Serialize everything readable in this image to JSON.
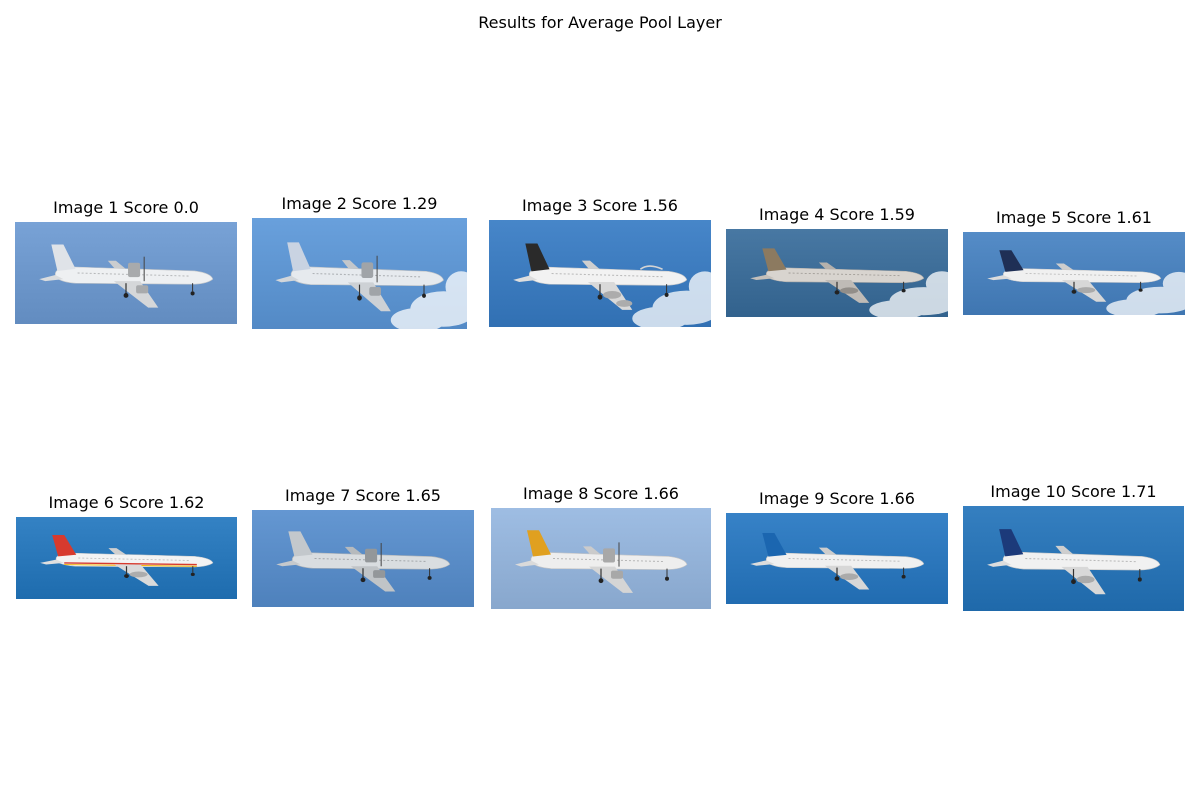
{
  "figure": {
    "title": "Results for Average Pool Layer"
  },
  "results": [
    {
      "title": "Image 1 Score 0.0",
      "subject": "white twin-turboprop airliner, clear sky",
      "sky": "#6e98cc",
      "body": "#eef0f2",
      "tail": "#dfe3e8"
    },
    {
      "title": "Image 2 Score 1.29",
      "subject": "turboprop airliner with dark engine nacelles",
      "sky": "#5f96d2",
      "body": "#e6eaee",
      "tail": "#c9d3e2"
    },
    {
      "title": "Image 3 Score 1.56",
      "subject": "four-engine wide-body jet with clouds",
      "sky": "#3d7cbf",
      "body": "#f2f2f2",
      "tail": "#2a2a2a"
    },
    {
      "title": "Image 4 Score 1.59",
      "subject": "twin-jet airliner with patterned tail",
      "sky": "#3e6e99",
      "body": "#d8d4cf",
      "tail": "#8c7a60"
    },
    {
      "title": "Image 5 Score 1.61",
      "subject": "twin-jet airliner, dark blue tail",
      "sky": "#4b82bd",
      "body": "#f0f0f0",
      "tail": "#1f2f55"
    },
    {
      "title": "Image 6 Score 1.62",
      "subject": "narrow-body jet with red and yellow stripes",
      "sky": "#2a78ba",
      "body": "#f3f3f3",
      "tail": "#d73a2e"
    },
    {
      "title": "Image 7 Score 1.65",
      "subject": "high-wing turboprop, grey livery",
      "sky": "#5a8dc8",
      "body": "#d9dde0",
      "tail": "#c3c8cc"
    },
    {
      "title": "Image 8 Score 1.66",
      "subject": "turboprop with orange tail, light sky",
      "sky": "#94b3d9",
      "body": "#eeeeee",
      "tail": "#e0a020"
    },
    {
      "title": "Image 9 Score 1.66",
      "subject": "wide-body twin-jet with blue tail",
      "sky": "#2d78bd",
      "body": "#f0f0f0",
      "tail": "#1b66b0"
    },
    {
      "title": "Image 10 Score 1.71",
      "subject": "narrow-body jet with striped tail",
      "sky": "#2b75b6",
      "body": "#f1f1f1",
      "tail": "#1c3a7a"
    }
  ]
}
